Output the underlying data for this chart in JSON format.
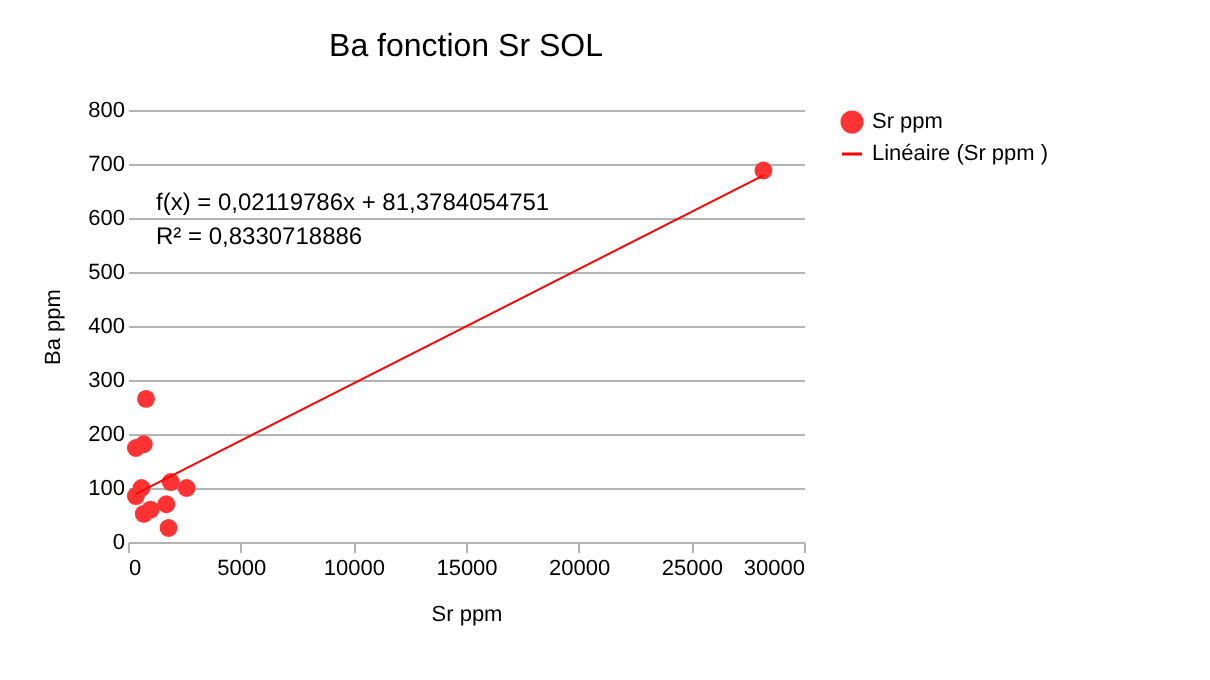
{
  "chart_data": {
    "type": "scatter",
    "title": "Ba fonction Sr SOL",
    "xlabel": "Sr ppm",
    "ylabel": "Ba ppm",
    "xlim": [
      0,
      30000
    ],
    "xticks": [
      0,
      5000,
      10000,
      15000,
      20000,
      25000,
      30000
    ],
    "ylim": [
      0,
      800
    ],
    "yticks": [
      0,
      100,
      200,
      300,
      400,
      500,
      600,
      700,
      800
    ],
    "grid": "y",
    "legend": "right",
    "annotations": [
      "f(x) = 0,02119786x + 81,3784054751",
      "R² = 0,8330718886"
    ],
    "series": [
      {
        "name": "Sr ppm",
        "color": "#ff3333",
        "marker": "circle",
        "x": [
          800,
          350,
          700,
          600,
          700,
          1000,
          1700,
          1900,
          2600,
          1800,
          350,
          28200
        ],
        "values": [
          265,
          174,
          181,
          100,
          52,
          60,
          70,
          111,
          100,
          26,
          85,
          688
        ]
      },
      {
        "name": "Linéaire (Sr ppm )",
        "type": "line",
        "color": "#ff0000",
        "x": [
          350,
          28200
        ],
        "values": [
          89,
          679
        ]
      }
    ]
  }
}
